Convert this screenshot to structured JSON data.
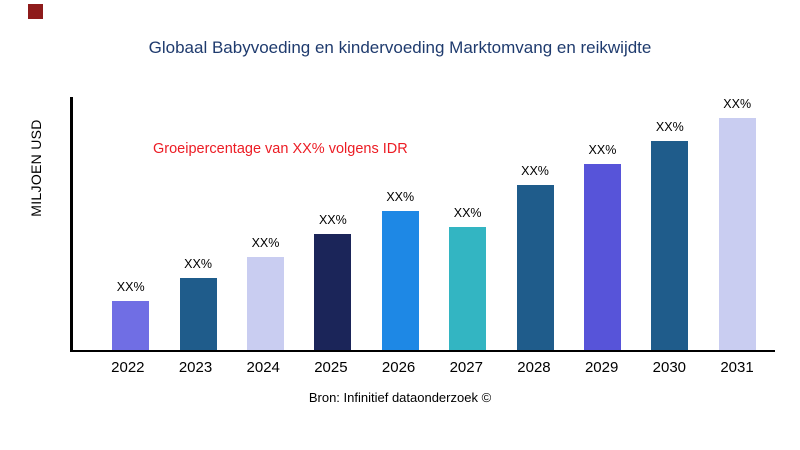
{
  "logo": {
    "color": "#8e1b1b"
  },
  "header": {
    "title": "Globaal Babyvoeding en kindervoeding Marktomvang en reikwijdte",
    "title_color": "#1f3b6e"
  },
  "annotation": {
    "text": "Groeipercentage van XX% volgens IDR",
    "color": "#ec1c24"
  },
  "source": {
    "text": "Bron: Infinitief dataonderzoek ©"
  },
  "chart_data": {
    "type": "bar",
    "title": "Globaal Babyvoeding en kindervoeding Marktomvang en reikwijdte",
    "xlabel": "",
    "ylabel": "MILJOEN USD",
    "categories": [
      "2022",
      "2023",
      "2024",
      "2025",
      "2026",
      "2027",
      "2028",
      "2029",
      "2030",
      "2031"
    ],
    "values": [
      21,
      31,
      40,
      50,
      60,
      53,
      71,
      80,
      90,
      100
    ],
    "bar_labels": [
      "XX%",
      "XX%",
      "XX%",
      "XX%",
      "XX%",
      "XX%",
      "XX%",
      "XX%",
      "XX%",
      "XX%"
    ],
    "bar_colors": [
      "#706ee4",
      "#1f5c8b",
      "#c9cdf1",
      "#1b2559",
      "#1e88e5",
      "#33b5c2",
      "#1f5c8b",
      "#5754d9",
      "#1f5c8b",
      "#c9cdf1"
    ],
    "ylim": [
      0,
      100
    ],
    "grid": false,
    "legend": "none",
    "note": "values are relative bar heights (max bar = 100); actual figures shown as XX% placeholders"
  }
}
